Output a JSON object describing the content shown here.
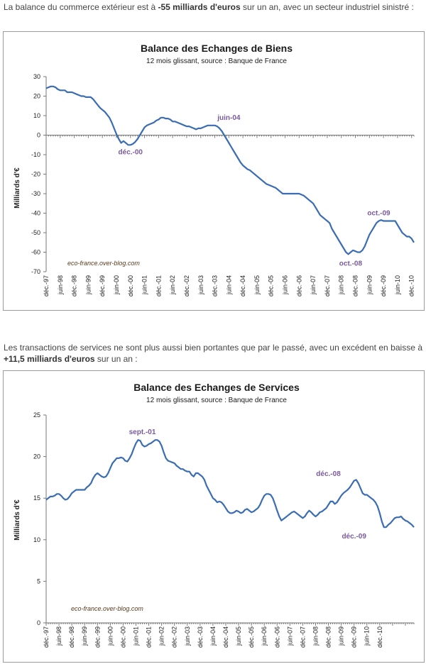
{
  "intro1": {
    "pre": "La balance du commerce extérieur est à ",
    "bold": "-55 milliards d'euros",
    "post": " sur un an, avec un secteur industriel sinistré :"
  },
  "intro2": {
    "pre": "Les transactions de services ne sont plus aussi bien portantes que par le passé, avec un excédent en baisse à ",
    "bold": "+11,5 milliards d'euros",
    "post": " sur un an :"
  },
  "chart_data": [
    {
      "type": "line",
      "title": "Balance des Echanges de Biens",
      "subtitle": "12 mois glissant, source : Banque de France",
      "ylabel": "Milliards d'€",
      "ylim": [
        -70,
        30
      ],
      "yticks": [
        30,
        20,
        10,
        0,
        -10,
        -20,
        -30,
        -40,
        -50,
        -60,
        -70
      ],
      "xticks": [
        "déc.-97",
        "juin-98",
        "déc.-98",
        "juin-99",
        "déc.-99",
        "juin-00",
        "déc.-00",
        "juin-01",
        "déc.-01",
        "juin-02",
        "déc.-02",
        "juin-03",
        "déc.-03",
        "juin-04",
        "déc.-04",
        "juin-05",
        "déc.-05",
        "juin-06",
        "déc.-06",
        "juin-07",
        "déc.-07",
        "juin-08",
        "déc.-08",
        "juin-09",
        "déc.-09",
        "juin-10",
        "déc.-10"
      ],
      "credit": "eco-france.over-blog.com",
      "grid": false,
      "annotations": [
        {
          "text": "déc.-00",
          "x": 36,
          "y": -4
        },
        {
          "text": "juin-04",
          "x": 78,
          "y": 5
        },
        {
          "text": "oct.-08",
          "x": 130,
          "y": -61
        },
        {
          "text": "oct.-09",
          "x": 142,
          "y": -44
        }
      ],
      "series": [
        {
          "values": [
            24,
            24.5,
            25,
            25,
            24.5,
            23.5,
            23,
            23,
            23,
            22,
            22,
            22,
            21.5,
            21,
            20.5,
            20,
            20,
            19.5,
            19.5,
            19.5,
            18.5,
            17,
            15.5,
            14,
            13,
            12,
            10.5,
            9,
            6.5,
            3.5,
            0.5,
            -2,
            -4,
            -3,
            -4,
            -5,
            -5,
            -4.5,
            -3.5,
            -2,
            0,
            2,
            4,
            5,
            5.5,
            6,
            6.5,
            7.5,
            8,
            9,
            9,
            8.5,
            8.5,
            8,
            7,
            7,
            6.5,
            6,
            5.5,
            5,
            4.5,
            4.5,
            4,
            3.5,
            3,
            3.5,
            3.5,
            4,
            4.5,
            5,
            5,
            5,
            5,
            4.5,
            3.5,
            2,
            0,
            -2,
            -4,
            -6,
            -8,
            -10,
            -12,
            -14,
            -15.5,
            -16.5,
            -17.5,
            -18,
            -19,
            -20,
            -21,
            -22,
            -23,
            -24,
            -25,
            -25.5,
            -26,
            -26.5,
            -27,
            -28,
            -29,
            -30,
            -30,
            -30,
            -30,
            -30,
            -30,
            -30,
            -30,
            -30.5,
            -31,
            -32,
            -33,
            -34,
            -35,
            -37,
            -39,
            -41,
            -42,
            -43,
            -44,
            -45,
            -48,
            -50,
            -52,
            -54,
            -56,
            -58,
            -60,
            -61,
            -60,
            -59,
            -59.5,
            -60,
            -60,
            -59,
            -57,
            -54,
            -51,
            -49,
            -47,
            -45,
            -44,
            -43.5,
            -44,
            -44,
            -44,
            -44,
            -44,
            -44,
            -46,
            -48,
            -50,
            -51,
            -52,
            -52,
            -53,
            -55
          ]
        }
      ]
    },
    {
      "type": "line",
      "title": "Balance des Echanges de Services",
      "subtitle": "12 mois glissant, source : Banque de France",
      "ylabel": "Milliards d'€",
      "ylim": [
        0,
        25
      ],
      "yticks": [
        25,
        20,
        15,
        10,
        5,
        0
      ],
      "xticks": [
        "déc.-97",
        "juin-98",
        "déc.-98",
        "juin-99",
        "déc.-99",
        "juin-00",
        "déc.-00",
        "juin-01",
        "déc.-01",
        "juin-02",
        "déc.-02",
        "juin-03",
        "déc.-03",
        "juin-04",
        "déc.-04",
        "juin-05",
        "déc.-05",
        "juin-06",
        "déc.-06",
        "juin-07",
        "déc.-07",
        "juin-08",
        "déc.-08",
        "juin-09",
        "déc.-09",
        "juin-10",
        "déc.-10"
      ],
      "credit": "eco-france.over-blog.com",
      "grid": false,
      "annotations": [
        {
          "text": "sept.-01",
          "x": 45,
          "y": 22
        },
        {
          "text": "déc.-08",
          "x": 132,
          "y": 17
        },
        {
          "text": "déc.-09",
          "x": 144,
          "y": 11.5
        }
      ],
      "series": [
        {
          "values": [
            14.8,
            15,
            15.2,
            15.2,
            15.3,
            15.5,
            15.5,
            15.3,
            15,
            14.8,
            14.9,
            15.2,
            15.6,
            15.8,
            16,
            16,
            16,
            16,
            16,
            16.3,
            16.5,
            16.8,
            17.4,
            17.8,
            18,
            17.8,
            17.6,
            17.5,
            17.6,
            18,
            18.6,
            19.2,
            19.5,
            19.8,
            19.8,
            19.9,
            19.8,
            19.5,
            19.4,
            19.8,
            20.3,
            21,
            21.6,
            22,
            21.9,
            21.4,
            21.2,
            21.3,
            21.5,
            21.6,
            21.8,
            22,
            22,
            21.8,
            21.3,
            20.5,
            19.8,
            19.5,
            19.4,
            19.3,
            19.2,
            18.9,
            18.7,
            18.5,
            18.5,
            18.3,
            18.2,
            18.2,
            17.8,
            17.6,
            18,
            18,
            17.8,
            17.6,
            17.2,
            16.5,
            16,
            15.5,
            15,
            14.8,
            14.5,
            14.6,
            14.5,
            14.2,
            13.8,
            13.4,
            13.2,
            13.2,
            13.3,
            13.5,
            13.4,
            13.2,
            13.3,
            13.6,
            13.7,
            13.5,
            13.3,
            13.4,
            13.6,
            13.8,
            14.2,
            14.8,
            15.3,
            15.5,
            15.5,
            15.4,
            15,
            14.3,
            13.5,
            12.8,
            12.3,
            12.5,
            12.7,
            12.9,
            13.1,
            13.3,
            13.4,
            13.2,
            13,
            12.8,
            12.6,
            12.8,
            13.2,
            13.5,
            13.3,
            13,
            12.8,
            13,
            13.3,
            13.4,
            13.6,
            13.8,
            14.2,
            14.6,
            14.6,
            14.3,
            14.5,
            14.9,
            15.3,
            15.6,
            15.8,
            16,
            16.3,
            16.7,
            17.1,
            17.2,
            16.8,
            16.2,
            15.6,
            15.4,
            15.4,
            15.2,
            15,
            14.8,
            14.5,
            14,
            13.2,
            12.2,
            11.5,
            11.5,
            11.8,
            12,
            12.3,
            12.6,
            12.7,
            12.7,
            12.8,
            12.5,
            12.3,
            12.2,
            12,
            11.8,
            11.5
          ]
        }
      ]
    }
  ]
}
